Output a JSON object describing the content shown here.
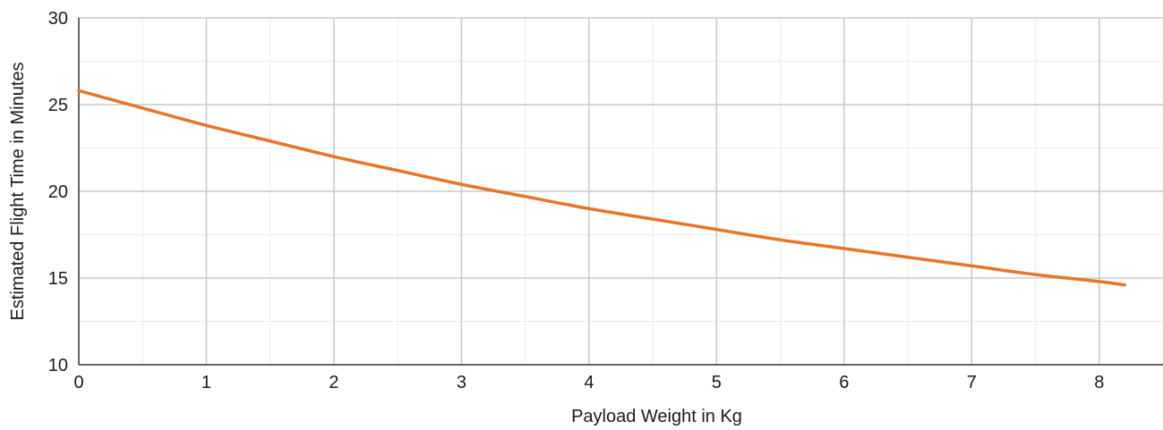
{
  "chart_data": {
    "type": "line",
    "title": "",
    "xlabel": "Payload Weight in Kg",
    "ylabel": "Estimated Flight Time in Minutes",
    "xlim": [
      0,
      8.5
    ],
    "ylim": [
      10,
      30
    ],
    "x_ticks": [
      0,
      1,
      2,
      3,
      4,
      5,
      6,
      7,
      8
    ],
    "y_ticks": [
      10,
      15,
      20,
      25,
      30
    ],
    "x_minor_step": 0.5,
    "y_minor_step": 2.5,
    "grid": true,
    "legend": "none",
    "series": [
      {
        "color": "#e8742a",
        "x": [
          0,
          0.5,
          1,
          1.5,
          2,
          2.5,
          3,
          3.5,
          4,
          4.5,
          5,
          5.5,
          6,
          6.5,
          7,
          7.5,
          8,
          8.2
        ],
        "y": [
          25.8,
          24.8,
          23.8,
          22.9,
          22.0,
          21.2,
          20.4,
          19.7,
          19.0,
          18.4,
          17.8,
          17.2,
          16.7,
          16.2,
          15.7,
          15.2,
          14.8,
          14.6
        ]
      }
    ]
  }
}
